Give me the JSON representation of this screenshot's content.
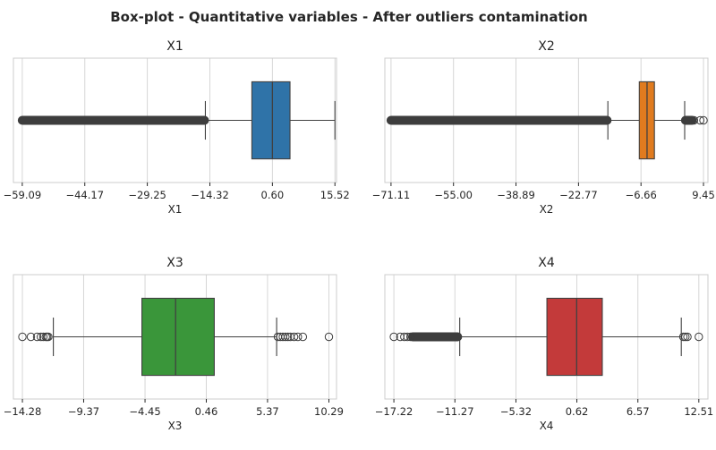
{
  "chart_data": {
    "type": "box",
    "title": "Box-plot - Quantitative variables - After outliers contamination",
    "panels": [
      {
        "title": "X1",
        "xlabel": "X1",
        "ticks": [
          -59.09,
          -44.17,
          -29.25,
          -14.32,
          0.6,
          15.52
        ],
        "tick_labels": [
          "−59.09",
          "−44.17",
          "−29.25",
          "−14.32",
          "0.60",
          "15.52"
        ],
        "xlim": [
          -61.2,
          15.9
        ],
        "box": {
          "whisker_low": -15.4,
          "q1": -4.3,
          "median": 0.6,
          "q3": 4.8,
          "whisker_high": 15.52
        },
        "color": "#2f73a8",
        "outlier_bands": [
          [
            -59.09,
            -15.6
          ]
        ],
        "outliers": []
      },
      {
        "title": "X2",
        "xlabel": "X2",
        "ticks": [
          -71.11,
          -55.0,
          -38.89,
          -22.77,
          -6.66,
          9.45
        ],
        "tick_labels": [
          "−71.11",
          "−55.00",
          "−38.89",
          "−22.77",
          "−6.66",
          "9.45"
        ],
        "xlim": [
          -72.7,
          10.6
        ],
        "box": {
          "whisker_low": -15.2,
          "q1": -7.1,
          "median": -5.1,
          "q3": -3.2,
          "whisker_high": 4.6
        },
        "color": "#e07b1f",
        "outlier_bands": [
          [
            -71.11,
            -15.4
          ],
          [
            4.8,
            6.5
          ]
        ],
        "outliers": [
          5.0,
          5.4,
          5.8,
          6.2,
          6.6,
          7.0,
          8.6,
          9.45
        ]
      },
      {
        "title": "X3",
        "xlabel": "X3",
        "ticks": [
          -14.28,
          -9.37,
          -4.45,
          0.46,
          5.37,
          10.29
        ],
        "tick_labels": [
          "−14.28",
          "−9.37",
          "−4.45",
          "0.46",
          "5.37",
          "10.29"
        ],
        "xlim": [
          -15.0,
          10.9
        ],
        "box": {
          "whisker_low": -11.8,
          "q1": -4.7,
          "median": -2.0,
          "q3": 1.1,
          "whisker_high": 6.1
        },
        "color": "#3a963a",
        "outlier_bands": [],
        "outliers": [
          -14.28,
          -13.6,
          -13.1,
          -12.8,
          -12.6,
          -12.4,
          -12.3,
          -12.2,
          6.2,
          6.4,
          6.6,
          6.8,
          7.0,
          7.2,
          7.5,
          7.8,
          8.2,
          10.29
        ]
      },
      {
        "title": "X4",
        "xlabel": "X4",
        "ticks": [
          -17.22,
          -11.27,
          -5.32,
          0.62,
          6.57,
          12.51
        ],
        "tick_labels": [
          "−17.22",
          "−11.27",
          "−5.32",
          "0.62",
          "6.57",
          "12.51"
        ],
        "xlim": [
          -18.1,
          13.4
        ],
        "box": {
          "whisker_low": -10.8,
          "q1": -2.3,
          "median": 0.6,
          "q3": 3.1,
          "whisker_high": 10.8
        },
        "color": "#c33a3a",
        "outlier_bands": [
          [
            -15.4,
            -11.0
          ]
        ],
        "outliers": [
          -17.22,
          -16.6,
          -16.2,
          -15.9,
          -15.6,
          11.0,
          11.2,
          11.4,
          12.51
        ]
      }
    ]
  }
}
